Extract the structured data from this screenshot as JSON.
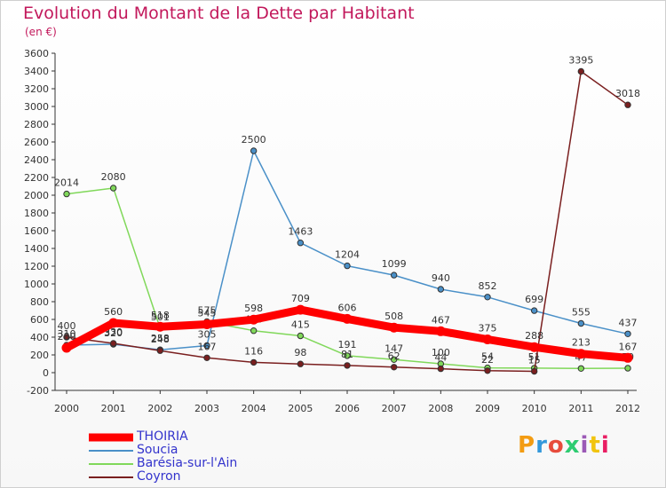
{
  "header": {
    "title": "Evolution du Montant de la Dette par Habitant",
    "subtitle": "(en €)"
  },
  "logo": {
    "text": "Proxiti",
    "colors": [
      "#f39c12",
      "#3498db",
      "#e74c3c",
      "#2ecc71",
      "#9b59b6",
      "#f1c40f",
      "#e91e63"
    ]
  },
  "chart_data": {
    "type": "line",
    "title": "Evolution du Montant de la Dette par Habitant",
    "subtitle": "(en €)",
    "xlabel": "",
    "ylabel": "",
    "ylim": [
      -200,
      3600
    ],
    "yticks": [
      -200,
      0,
      200,
      400,
      600,
      800,
      1000,
      1200,
      1400,
      1600,
      1800,
      2000,
      2200,
      2400,
      2600,
      2800,
      3000,
      3200,
      3400,
      3600
    ],
    "x": [
      "2000",
      "2001",
      "2002",
      "2003",
      "2004",
      "2005",
      "2006",
      "2007",
      "2008",
      "2009",
      "2010",
      "2011",
      "2012"
    ],
    "grid": false,
    "legend_position": "bottom-left",
    "series": [
      {
        "name": "THOIRIA",
        "color": "#ff0000",
        "values": [
          280,
          560,
          518,
          545,
          598,
          709,
          606,
          508,
          467,
          375,
          288,
          213,
          167
        ],
        "labels": [
          "280",
          "560",
          "518",
          "545",
          "598",
          "709",
          "606",
          "508",
          "467",
          "375",
          "288",
          "213",
          "167"
        ]
      },
      {
        "name": "Soucia",
        "color": "#4a90c8",
        "values": [
          310,
          320,
          258,
          305,
          2500,
          1463,
          1204,
          1099,
          940,
          852,
          699,
          555,
          437
        ],
        "labels": [
          "310",
          "320",
          "258",
          "305",
          "2500",
          "1463",
          "1204",
          "1099",
          "940",
          "852",
          "699",
          "555",
          "437"
        ]
      },
      {
        "name": "Barésia-sur-l'Ain",
        "color": "#80d85a",
        "values": [
          2014,
          2080,
          501,
          575,
          473,
          415,
          191,
          147,
          100,
          54,
          51,
          47,
          50
        ],
        "labels": [
          "2014",
          "2080",
          "501",
          "575",
          "473",
          "415",
          "191",
          "147",
          "100",
          "54",
          "51",
          "47",
          "50"
        ]
      },
      {
        "name": "Coyron",
        "color": "#7a1f1f",
        "values": [
          400,
          330,
          248,
          167,
          116,
          98,
          81,
          62,
          44,
          22,
          15,
          3395,
          3018
        ],
        "labels": [
          "400",
          "330",
          "248",
          "167",
          "116",
          "98",
          "81",
          "62",
          "44",
          "22",
          "15",
          "3395",
          "3018"
        ]
      }
    ]
  }
}
